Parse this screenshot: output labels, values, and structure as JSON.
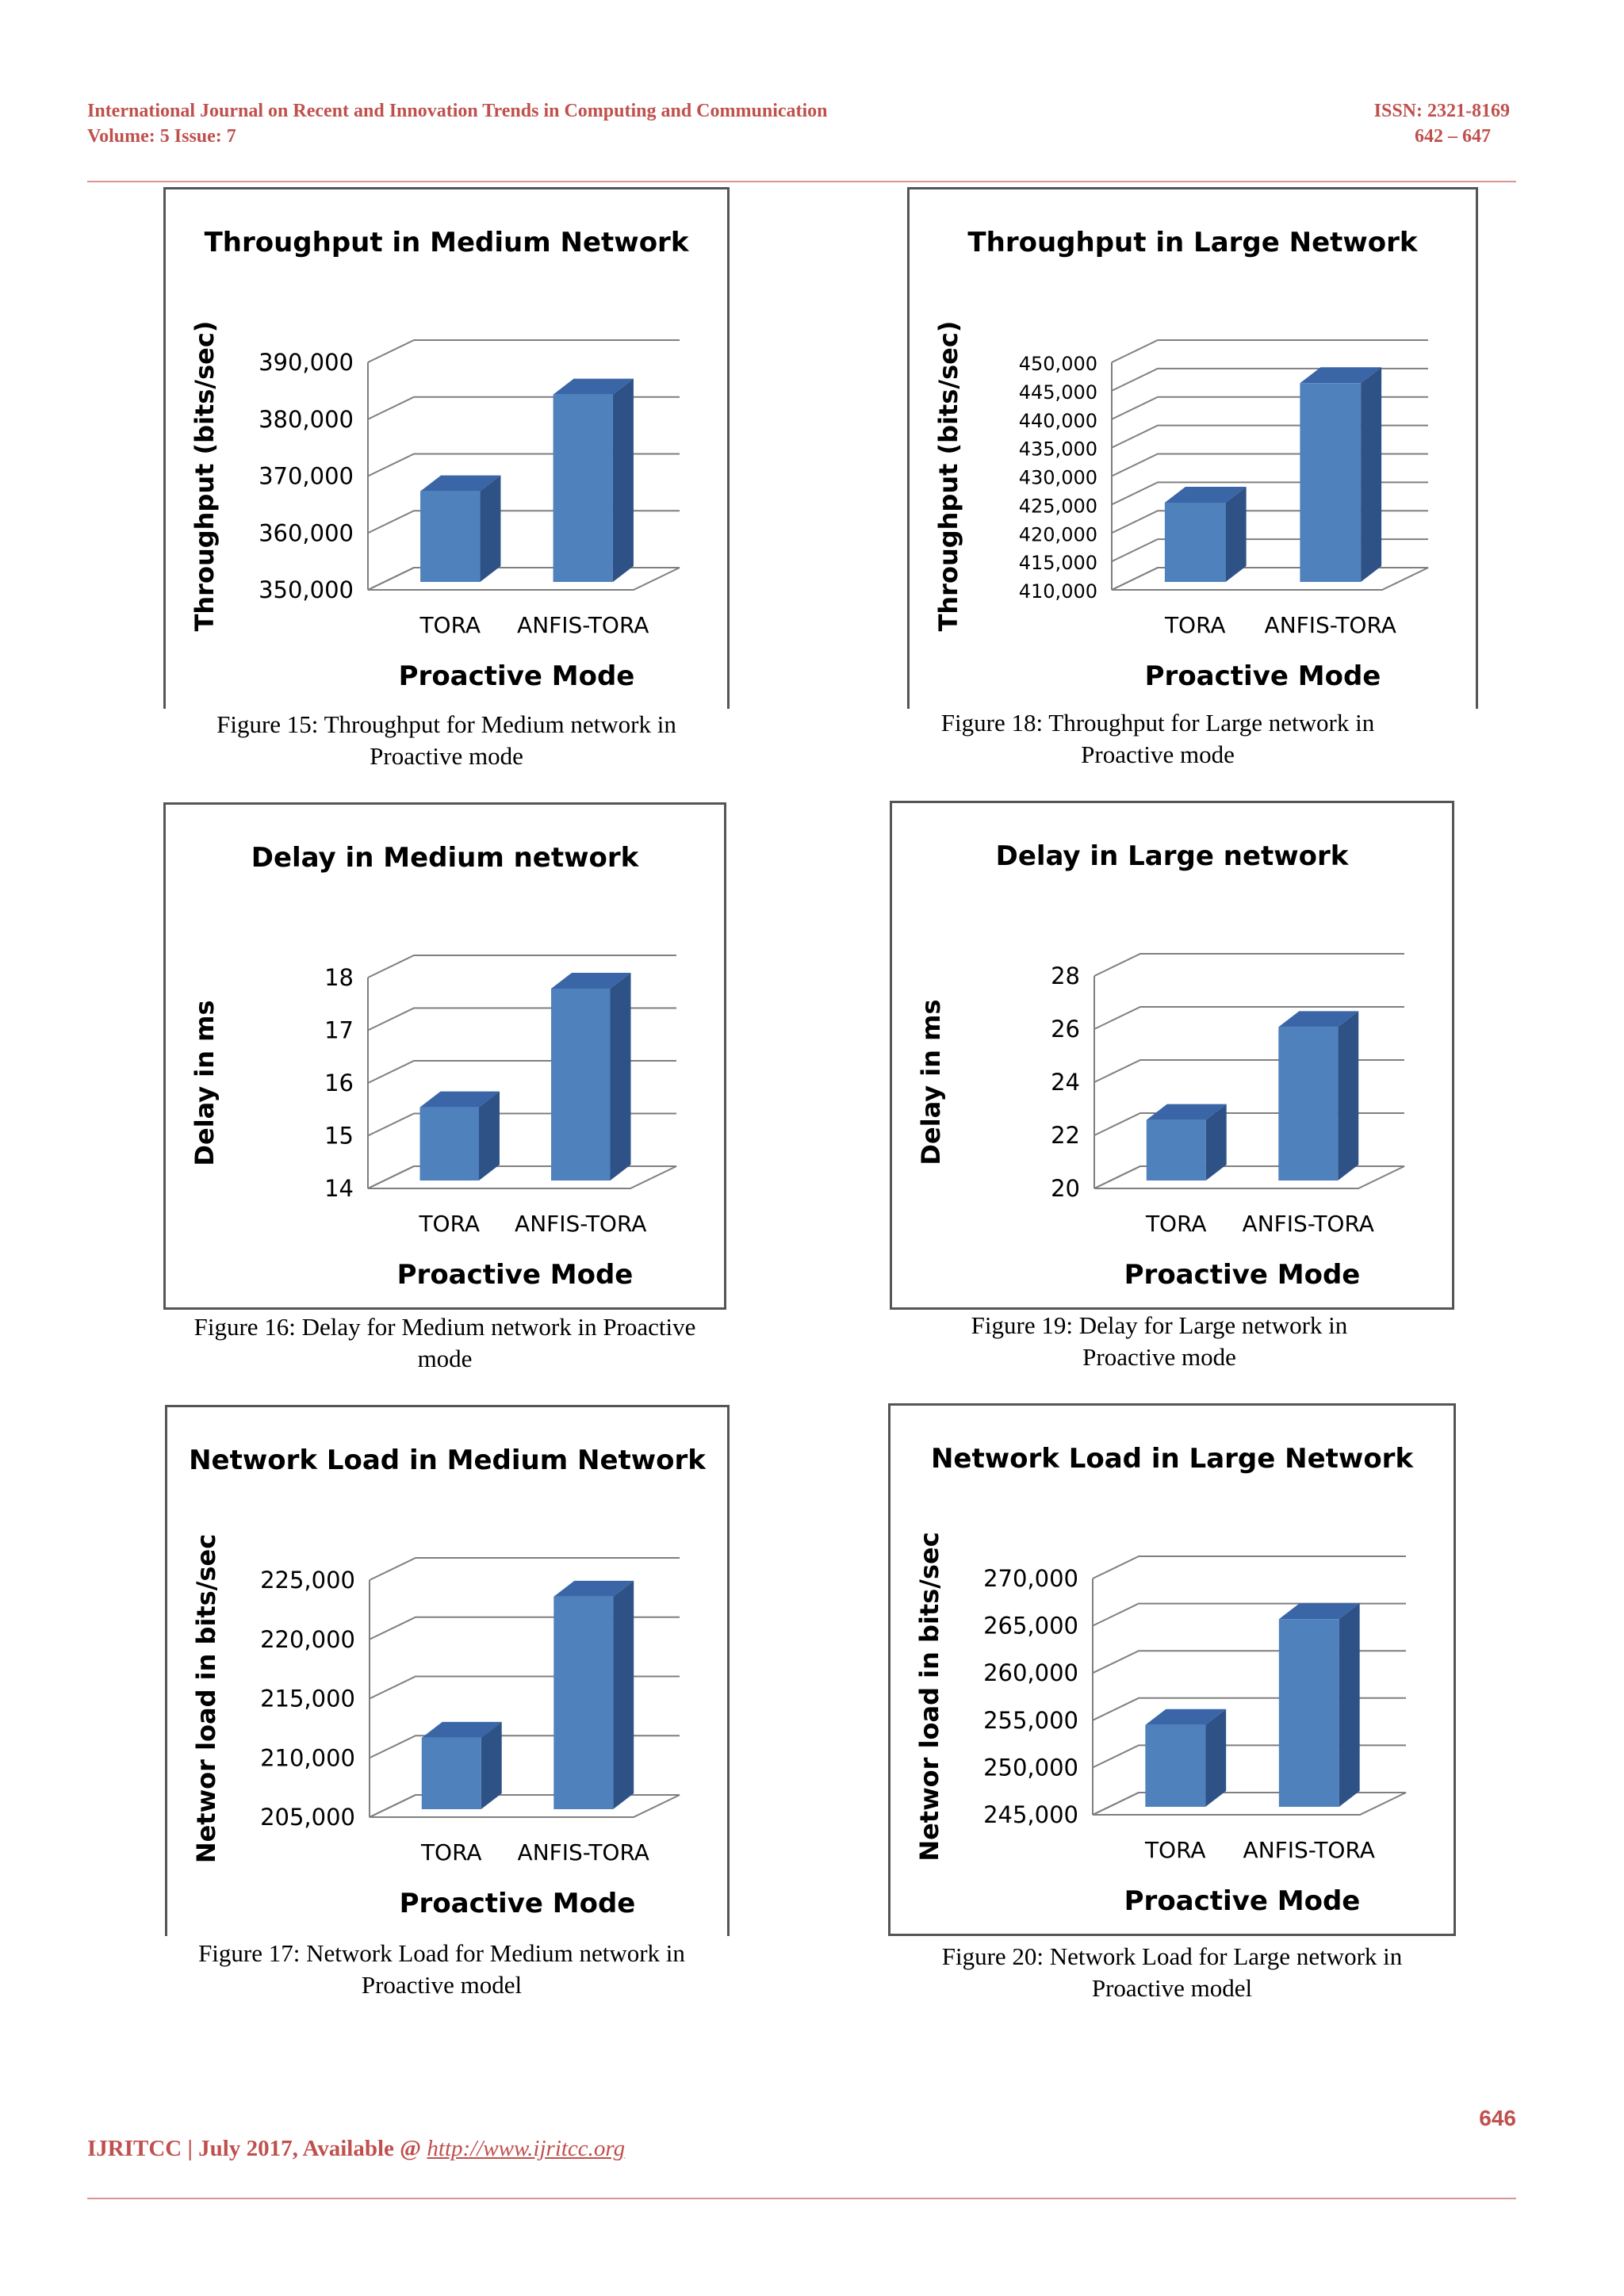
{
  "header": {
    "journal": "International Journal on Recent and Innovation Trends in Computing and Communication",
    "volume": "Volume: 5 Issue: 7",
    "issn": "ISSN: 2321-8169",
    "pages": "642 – 647"
  },
  "captions": {
    "fig15": [
      "Figure 15:  Throughput for Medium network in",
      "Proactive mode"
    ],
    "fig18": [
      "Figure 18:  Throughput for Large network in",
      "Proactive mode"
    ],
    "fig16": [
      "Figure 16:  Delay for Medium network in Proactive",
      "mode"
    ],
    "fig19": [
      "Figure 19:  Delay for Large network in",
      "Proactive mode"
    ],
    "fig17": [
      "Figure 17:  Network Load for Medium network in",
      "Proactive model"
    ],
    "fig20": [
      "Figure 20:  Network Load for Large network in",
      "Proactive model"
    ]
  },
  "footer": {
    "text": "IJRITCC | July 2017, Available @ ",
    "link": "http://www.ijritcc.org",
    "page_number": "646"
  },
  "colors": {
    "bar_front": "#4f81bd",
    "bar_side": "#2f5286",
    "bar_top": "#3a66a8",
    "accent": "#c0504d"
  },
  "chart_data": [
    {
      "id": "fig15",
      "type": "bar",
      "title": "Throughput in Medium Network",
      "xlabel": "Proactive Mode",
      "ylabel": "Throughput (bits/sec)",
      "categories": [
        "TORA",
        "ANFIS-TORA"
      ],
      "values": [
        366500,
        383500
      ],
      "ylim": [
        350000,
        390000
      ],
      "yticks": [
        "350,000",
        "360,000",
        "370,000",
        "380,000",
        "390,000"
      ]
    },
    {
      "id": "fig18",
      "type": "bar",
      "title": "Throughput in Large Network",
      "xlabel": "Proactive Mode",
      "ylabel": "Throughput (bits/sec)",
      "categories": [
        "TORA",
        "ANFIS-TORA"
      ],
      "values": [
        424500,
        445500
      ],
      "ylim": [
        410000,
        450000
      ],
      "yticks": [
        "410,000",
        "415,000",
        "420,000",
        "425,000",
        "430,000",
        "435,000",
        "440,000",
        "445,000",
        "450,000"
      ]
    },
    {
      "id": "fig16",
      "type": "bar",
      "title": "Delay in Medium network",
      "xlabel": "Proactive Mode",
      "ylabel": "Delay in ms",
      "categories": [
        "TORA",
        "ANFIS-TORA"
      ],
      "values": [
        15.45,
        17.7
      ],
      "ylim": [
        14,
        18
      ],
      "yticks": [
        "14",
        "15",
        "16",
        "17",
        "18"
      ]
    },
    {
      "id": "fig19",
      "type": "bar",
      "title": "Delay in Large network",
      "xlabel": "Proactive Mode",
      "ylabel": "Delay in ms",
      "categories": [
        "TORA",
        "ANFIS-TORA"
      ],
      "values": [
        22.4,
        25.9
      ],
      "ylim": [
        20,
        28
      ],
      "yticks": [
        "20",
        "22",
        "24",
        "26",
        "28"
      ]
    },
    {
      "id": "fig17",
      "type": "bar",
      "title": "Network Load in Medium  Network",
      "xlabel": "Proactive Mode",
      "ylabel": "Networ load in bits/sec",
      "categories": [
        "TORA",
        "ANFIS-TORA"
      ],
      "values": [
        211300,
        223200
      ],
      "ylim": [
        205000,
        225000
      ],
      "yticks": [
        "205,000",
        "210,000",
        "215,000",
        "220,000",
        "225,000"
      ]
    },
    {
      "id": "fig20",
      "type": "bar",
      "title": "Network Load in Large  Network",
      "xlabel": "Proactive Mode",
      "ylabel": "Networ load in bits/sec",
      "categories": [
        "TORA",
        "ANFIS-TORA"
      ],
      "values": [
        254000,
        265200
      ],
      "ylim": [
        245000,
        270000
      ],
      "yticks": [
        "245,000",
        "250,000",
        "255,000",
        "260,000",
        "265,000",
        "270,000"
      ]
    }
  ]
}
